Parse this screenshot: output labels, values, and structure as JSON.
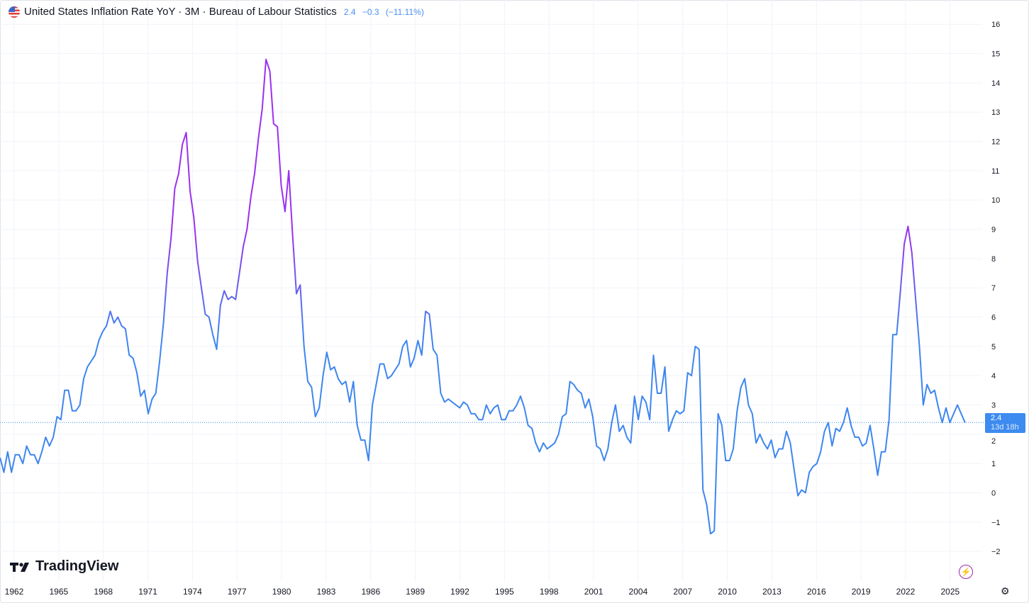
{
  "header": {
    "title": "United States Inflation Rate YoY · 3M · Bureau of Labour Statistics",
    "last_value": "2.4",
    "change": "−0.3",
    "change_pct": "(−11.11%)",
    "flag_icon": "us-flag-icon"
  },
  "price_label": {
    "value": "2.4",
    "countdown": "13d 18h"
  },
  "branding": {
    "logo_text": "TradingView"
  },
  "colors": {
    "line_low": "#3d86f0",
    "line_high": "#9b30f0",
    "grid": "#f0f3fa",
    "price_tag": "#3d8bf0"
  },
  "chart_data": {
    "type": "line",
    "title": "United States Inflation Rate YoY · 3M · Bureau of Labour Statistics",
    "xlabel": "",
    "ylabel": "",
    "x_start": 1961.05,
    "x_end": 2026.0,
    "xlim": [
      1961.0,
      2027.2
    ],
    "ylim": [
      -2.6,
      16.8
    ],
    "x_ticks": [
      "1962",
      "1965",
      "1968",
      "1971",
      "1974",
      "1977",
      "1980",
      "1983",
      "1986",
      "1989",
      "1992",
      "1995",
      "1998",
      "2001",
      "2004",
      "2007",
      "2010",
      "2013",
      "2016",
      "2019",
      "2022",
      "2025"
    ],
    "y_ticks": [
      "16",
      "15",
      "14",
      "13",
      "12",
      "11",
      "10",
      "9",
      "8",
      "7",
      "6",
      "5",
      "4",
      "3",
      "2",
      "1",
      "0",
      "−1",
      "−2"
    ],
    "grid": true,
    "last_value_line": 2.4,
    "series": [
      {
        "name": "US Inflation Rate YoY",
        "values": [
          1.2,
          0.7,
          1.4,
          0.7,
          1.3,
          1.3,
          1.0,
          1.6,
          1.3,
          1.3,
          1.0,
          1.4,
          1.9,
          1.6,
          1.9,
          2.6,
          2.5,
          3.5,
          3.5,
          2.8,
          2.8,
          3.0,
          3.9,
          4.3,
          4.5,
          4.7,
          5.2,
          5.5,
          5.7,
          6.2,
          5.8,
          6.0,
          5.7,
          5.6,
          4.7,
          4.6,
          4.1,
          3.3,
          3.5,
          2.7,
          3.2,
          3.4,
          4.5,
          5.8,
          7.5,
          8.7,
          10.4,
          10.9,
          11.9,
          12.3,
          10.3,
          9.4,
          7.9,
          7.0,
          6.1,
          6.0,
          5.4,
          4.9,
          6.4,
          6.9,
          6.6,
          6.7,
          6.6,
          7.5,
          8.4,
          9.0,
          10.1,
          10.9,
          12.1,
          13.1,
          14.8,
          14.4,
          12.6,
          12.5,
          10.5,
          9.6,
          11.0,
          8.8,
          6.8,
          7.1,
          5.0,
          3.8,
          3.6,
          2.6,
          2.9,
          4.0,
          4.8,
          4.2,
          4.3,
          3.9,
          3.7,
          3.8,
          3.1,
          3.8,
          2.3,
          1.8,
          1.8,
          1.1,
          3.0,
          3.7,
          4.4,
          4.4,
          3.9,
          4.0,
          4.2,
          4.4,
          5.0,
          5.2,
          4.3,
          4.6,
          5.2,
          4.7,
          6.2,
          6.1,
          4.9,
          4.7,
          3.4,
          3.1,
          3.2,
          3.1,
          3.0,
          2.9,
          3.1,
          3.0,
          2.7,
          2.7,
          2.5,
          2.5,
          3.0,
          2.7,
          2.9,
          3.0,
          2.5,
          2.5,
          2.8,
          2.8,
          3.0,
          3.3,
          2.9,
          2.3,
          2.2,
          1.7,
          1.4,
          1.7,
          1.5,
          1.6,
          1.7,
          2.0,
          2.6,
          2.7,
          3.8,
          3.7,
          3.5,
          3.4,
          2.9,
          3.2,
          2.6,
          1.6,
          1.5,
          1.1,
          1.5,
          2.4,
          3.0,
          2.1,
          2.3,
          1.9,
          1.7,
          3.3,
          2.5,
          3.3,
          3.1,
          2.5,
          4.7,
          3.4,
          3.4,
          4.3,
          2.1,
          2.5,
          2.8,
          2.7,
          2.8,
          4.1,
          4.0,
          5.0,
          4.9,
          0.1,
          -0.4,
          -1.4,
          -1.3,
          2.7,
          2.3,
          1.1,
          1.1,
          1.5,
          2.8,
          3.6,
          3.9,
          3.0,
          2.7,
          1.7,
          2.0,
          1.7,
          1.5,
          1.8,
          1.2,
          1.5,
          1.5,
          2.1,
          1.7,
          0.8,
          -0.1,
          0.1,
          0.0,
          0.7,
          0.9,
          1.0,
          1.4,
          2.1,
          2.4,
          1.6,
          2.2,
          2.1,
          2.4,
          2.9,
          2.3,
          1.9,
          1.9,
          1.6,
          1.7,
          2.3,
          1.5,
          0.6,
          1.4,
          1.4,
          2.5,
          5.4,
          5.4,
          6.9,
          8.5,
          9.1,
          8.2,
          6.6,
          5.0,
          3.0,
          3.7,
          3.4,
          3.5,
          2.9,
          2.4,
          2.9,
          2.4,
          2.7,
          3.0,
          2.7,
          2.4
        ]
      }
    ]
  }
}
